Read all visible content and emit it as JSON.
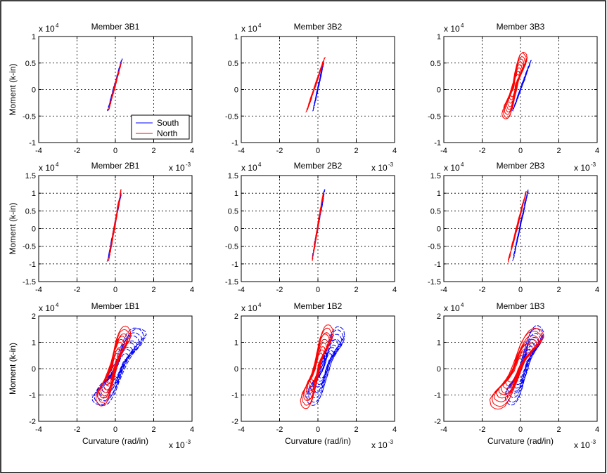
{
  "figure": {
    "background": "#ffffff",
    "frame_color": "#000000",
    "series_colors": {
      "South": "#0000ff",
      "North": "#ff0000"
    }
  },
  "chart_data": [
    {
      "type": "line",
      "title": "Member 3B1",
      "xlabel": "",
      "ylabel": "Moment (k-in)",
      "xlim": [
        -4,
        4
      ],
      "ylim": [
        -1,
        1
      ],
      "xticks": [
        "-4",
        "-2",
        "0",
        "2",
        "4"
      ],
      "yticks": [
        "-1",
        "-0.5",
        "0",
        "0.5",
        "1"
      ],
      "x_exponent": "",
      "y_exponent": "x 10^4",
      "grid": true,
      "legend": {
        "placement": "lower-right",
        "entries": [
          "South",
          "North"
        ]
      },
      "series": [
        {
          "name": "South",
          "color": "#0000ff",
          "x": [
            -0.4,
            0.35
          ],
          "y": [
            -0.4,
            0.58
          ]
        },
        {
          "name": "North",
          "color": "#ff0000",
          "x": [
            -0.35,
            0.3
          ],
          "y": [
            -0.38,
            0.5
          ]
        }
      ]
    },
    {
      "type": "line",
      "title": "Member 3B2",
      "xlabel": "",
      "ylabel": "",
      "xlim": [
        -4,
        4
      ],
      "ylim": [
        -1,
        1
      ],
      "xticks": [
        "-4",
        "-2",
        "0",
        "2",
        "4"
      ],
      "yticks": [
        "-1",
        "-0.5",
        "0",
        "0.5",
        "1"
      ],
      "x_exponent": "",
      "y_exponent": "x 10^4",
      "grid": true,
      "series": [
        {
          "name": "South",
          "color": "#0000ff",
          "x": [
            -0.25,
            0.3
          ],
          "y": [
            -0.4,
            0.52
          ]
        },
        {
          "name": "North",
          "color": "#ff0000",
          "x": [
            -0.6,
            0.35
          ],
          "y": [
            -0.42,
            0.6
          ]
        }
      ]
    },
    {
      "type": "line",
      "title": "Member 3B3",
      "xlabel": "",
      "ylabel": "",
      "xlim": [
        -4,
        4
      ],
      "ylim": [
        -1,
        1
      ],
      "xticks": [
        "-4",
        "-2",
        "0",
        "2",
        "4"
      ],
      "yticks": [
        "-1",
        "-0.5",
        "0",
        "0.5",
        "1"
      ],
      "x_exponent": "",
      "y_exponent": "x 10^4",
      "grid": true,
      "series": [
        {
          "name": "South",
          "color": "#0000ff",
          "x": [
            -0.4,
            0.55
          ],
          "y": [
            -0.4,
            0.55
          ]
        },
        {
          "name": "North",
          "color": "#ff0000",
          "x": [
            -0.95,
            0.35
          ],
          "y": [
            -0.45,
            0.6
          ]
        }
      ]
    },
    {
      "type": "line",
      "title": "Member 2B1",
      "xlabel": "",
      "ylabel": "Moment (k-in)",
      "xlim": [
        -4,
        4
      ],
      "ylim": [
        -1.5,
        1.5
      ],
      "xticks": [
        "-4",
        "-2",
        "0",
        "2",
        "4"
      ],
      "yticks": [
        "-1.5",
        "-1",
        "-0.5",
        "0",
        "0.5",
        "1",
        "1.5"
      ],
      "x_exponent": "x 10^-3",
      "y_exponent": "x 10^4",
      "grid": true,
      "series": [
        {
          "name": "South",
          "color": "#0000ff",
          "x": [
            -0.4,
            0.3
          ],
          "y": [
            -0.92,
            1.0
          ]
        },
        {
          "name": "North",
          "color": "#ff0000",
          "x": [
            -0.35,
            0.3
          ],
          "y": [
            -0.9,
            1.1
          ]
        }
      ]
    },
    {
      "type": "line",
      "title": "Member 2B2",
      "xlabel": "",
      "ylabel": "",
      "xlim": [
        -4,
        4
      ],
      "ylim": [
        -1.5,
        1.5
      ],
      "xticks": [
        "-4",
        "-2",
        "0",
        "2",
        "4"
      ],
      "yticks": [
        "-1.5",
        "-1",
        "-0.5",
        "0",
        "0.5",
        "1",
        "1.5"
      ],
      "x_exponent": "x 10^-3",
      "y_exponent": "x 10^4",
      "grid": true,
      "series": [
        {
          "name": "South",
          "color": "#0000ff",
          "x": [
            -0.3,
            0.35
          ],
          "y": [
            -0.85,
            1.1
          ]
        },
        {
          "name": "North",
          "color": "#ff0000",
          "x": [
            -0.3,
            0.3
          ],
          "y": [
            -0.9,
            1.05
          ]
        }
      ]
    },
    {
      "type": "line",
      "title": "Member 2B3",
      "xlabel": "",
      "ylabel": "",
      "xlim": [
        -4,
        4
      ],
      "ylim": [
        -1.5,
        1.5
      ],
      "xticks": [
        "-4",
        "-2",
        "0",
        "2",
        "4"
      ],
      "yticks": [
        "-1.5",
        "-1",
        "-0.5",
        "0",
        "0.5",
        "1",
        "1.5"
      ],
      "x_exponent": "x 10^-3",
      "y_exponent": "x 10^4",
      "grid": true,
      "series": [
        {
          "name": "South",
          "color": "#0000ff",
          "x": [
            -0.4,
            0.4
          ],
          "y": [
            -0.9,
            1.1
          ]
        },
        {
          "name": "North",
          "color": "#ff0000",
          "x": [
            -0.65,
            0.3
          ],
          "y": [
            -0.95,
            1.05
          ]
        }
      ]
    },
    {
      "type": "line",
      "title": "Member 1B1",
      "xlabel": "Curvature (rad/in)",
      "ylabel": "Moment (k-in)",
      "xlim": [
        -4,
        4
      ],
      "ylim": [
        -2,
        2
      ],
      "xticks": [
        "-4",
        "-2",
        "0",
        "2",
        "4"
      ],
      "yticks": [
        "-2",
        "-1",
        "0",
        "1",
        "2"
      ],
      "x_exponent": "x 10^-3",
      "y_exponent": "x 10^4",
      "grid": true,
      "series": [
        {
          "name": "South",
          "color": "#0000ff",
          "x": [
            -1.2,
            1.6
          ],
          "y": [
            -1.15,
            1.3
          ]
        },
        {
          "name": "North",
          "color": "#ff0000",
          "x": [
            -1.0,
            0.8
          ],
          "y": [
            -1.1,
            1.3
          ]
        }
      ]
    },
    {
      "type": "line",
      "title": "Member 1B2",
      "xlabel": "Curvature (rad/in)",
      "ylabel": "",
      "xlim": [
        -4,
        4
      ],
      "ylim": [
        -2,
        2
      ],
      "xticks": [
        "-4",
        "-2",
        "0",
        "2",
        "4"
      ],
      "yticks": [
        "-2",
        "-1",
        "0",
        "1",
        "2"
      ],
      "x_exponent": "x 10^-3",
      "y_exponent": "x 10^4",
      "grid": true,
      "series": [
        {
          "name": "South",
          "color": "#0000ff",
          "x": [
            -0.6,
            1.4
          ],
          "y": [
            -1.05,
            1.25
          ]
        },
        {
          "name": "North",
          "color": "#ff0000",
          "x": [
            -0.9,
            0.8
          ],
          "y": [
            -1.2,
            1.35
          ]
        }
      ]
    },
    {
      "type": "line",
      "title": "Member 1B3",
      "xlabel": "Curvature (rad/in)",
      "ylabel": "",
      "xlim": [
        -4,
        4
      ],
      "ylim": [
        -2,
        2
      ],
      "xticks": [
        "-4",
        "-2",
        "0",
        "2",
        "4"
      ],
      "yticks": [
        "-2",
        "-1",
        "0",
        "1",
        "2"
      ],
      "x_exponent": "x 10^-3",
      "y_exponent": "x 10^4",
      "grid": true,
      "series": [
        {
          "name": "South",
          "color": "#0000ff",
          "x": [
            -0.8,
            1.2
          ],
          "y": [
            -1.05,
            1.3
          ]
        },
        {
          "name": "North",
          "color": "#ff0000",
          "x": [
            -1.6,
            1.2
          ],
          "y": [
            -1.25,
            1.25
          ]
        }
      ]
    }
  ]
}
